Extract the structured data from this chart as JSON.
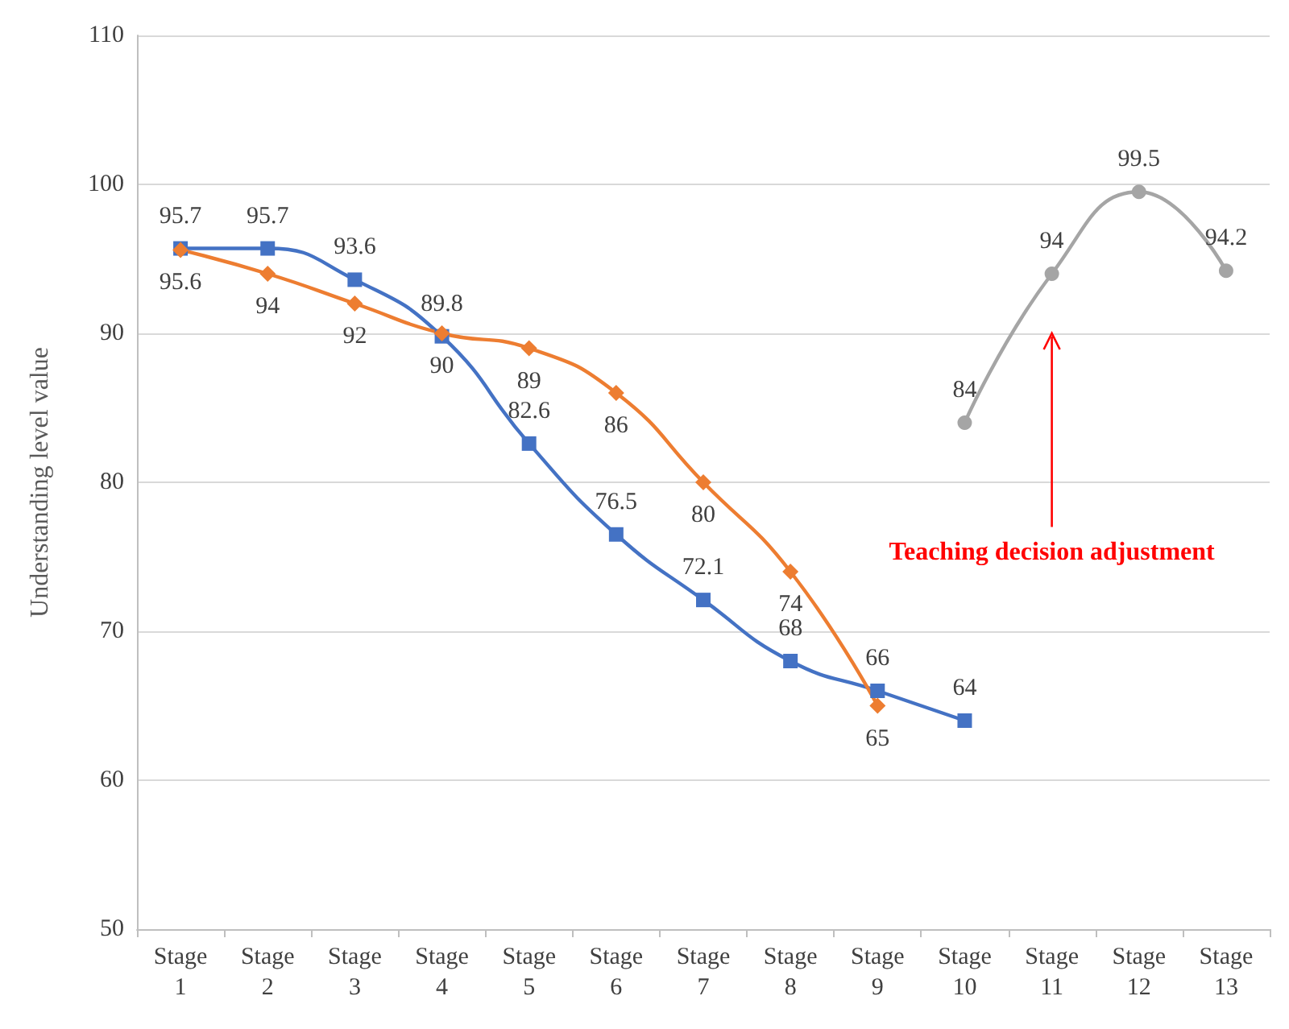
{
  "chart_data": {
    "type": "line",
    "ylabel": "Understanding level value",
    "categories": [
      "Stage 1",
      "Stage 2",
      "Stage 3",
      "Stage 4",
      "Stage 5",
      "Stage 6",
      "Stage 7",
      "Stage 8",
      "Stage 9",
      "Stage 10",
      "Stage 11",
      "Stage 12",
      "Stage 13"
    ],
    "series": [
      {
        "color": "#4472c4",
        "marker": "square",
        "values": [
          95.7,
          95.7,
          93.6,
          89.8,
          82.6,
          76.5,
          72.1,
          68,
          66,
          64,
          null,
          null,
          null
        ]
      },
      {
        "color": "#ed7d31",
        "marker": "diamond",
        "values": [
          95.6,
          94,
          92,
          90,
          89,
          86,
          80,
          74,
          65,
          null,
          null,
          null,
          null
        ]
      },
      {
        "color": "#a5a5a5",
        "marker": "circle",
        "values": [
          null,
          null,
          null,
          null,
          null,
          null,
          null,
          null,
          null,
          84,
          94,
          99.5,
          94.2
        ]
      }
    ],
    "ylim": [
      50,
      110
    ],
    "yticks": [
      50,
      60,
      70,
      80,
      90,
      100,
      110
    ],
    "grid": "y",
    "data_labels": true,
    "annotations": [
      "Teaching decision adjustment"
    ]
  }
}
